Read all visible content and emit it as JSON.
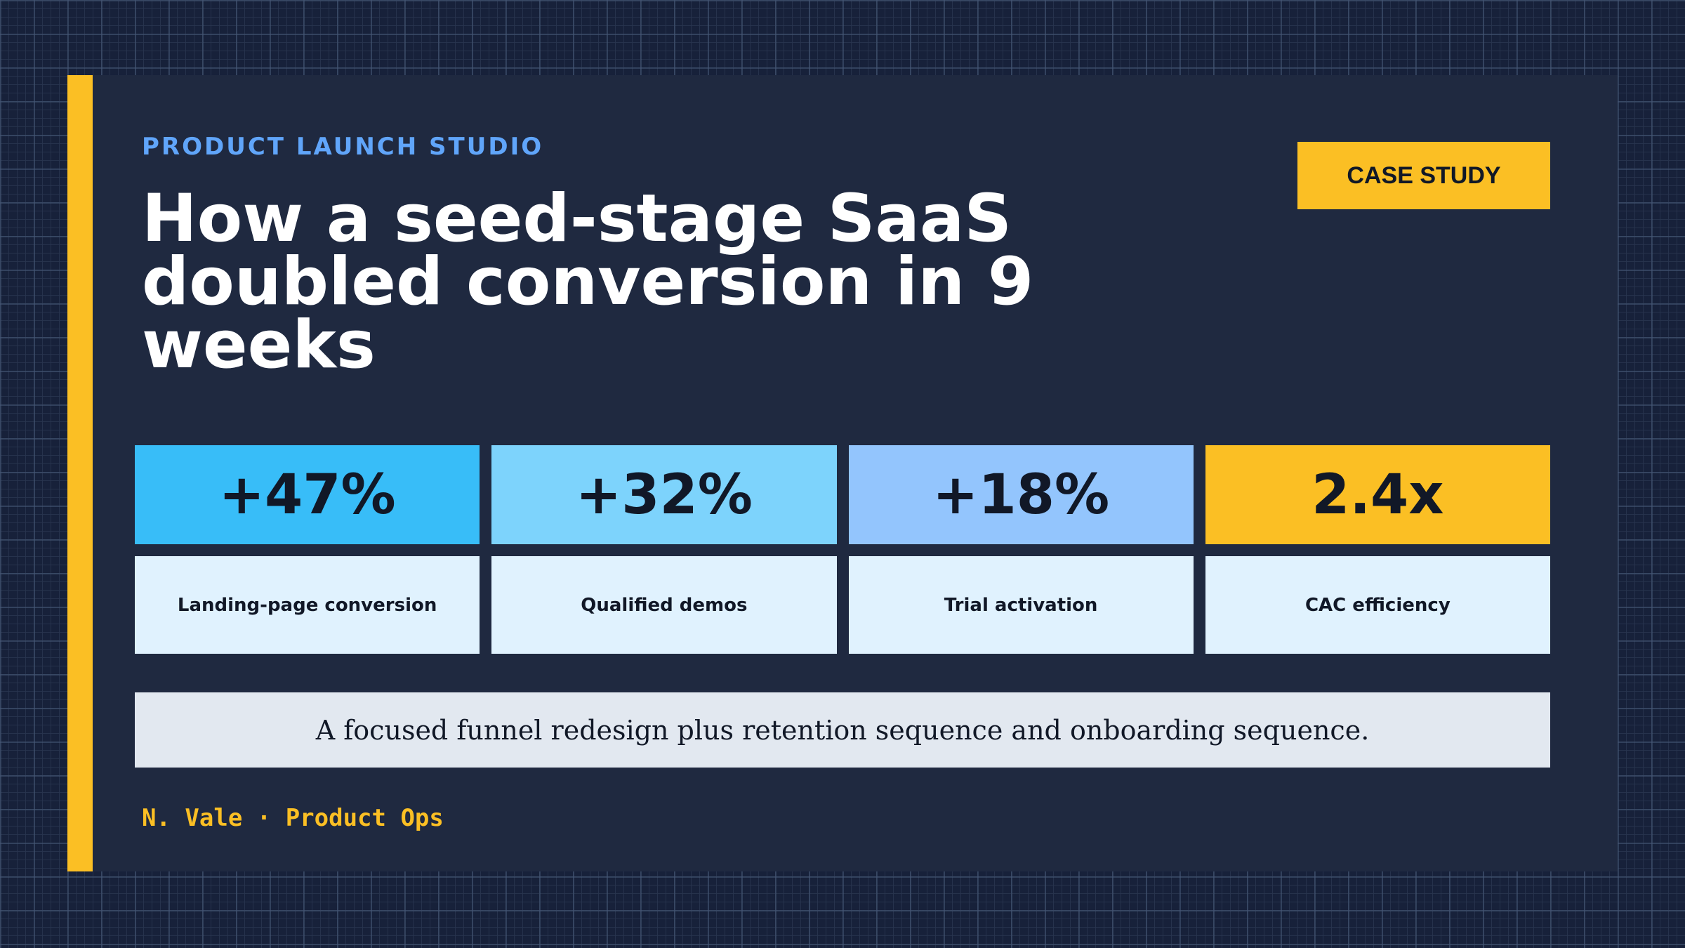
{
  "header": {
    "eyebrow": "PRODUCT LAUNCH STUDIO",
    "badge": "CASE STUDY",
    "title": "How a seed-stage SaaS doubled conversion in 9 weeks"
  },
  "stats": [
    {
      "value": "+47%",
      "label": "Landing-page conversion",
      "color": "#38bdf8"
    },
    {
      "value": "+32%",
      "label": "Qualified demos",
      "color": "#7dd3fc"
    },
    {
      "value": "+18%",
      "label": "Trial activation",
      "color": "#93c5fd"
    },
    {
      "value": "2.4x",
      "label": "CAC efficiency",
      "color": "#fbbf24"
    }
  ],
  "summary": "A focused funnel redesign plus retention sequence and onboarding sequence.",
  "footer": {
    "author": "N. Vale · Product Ops"
  },
  "colors": {
    "background": "#17213a",
    "card": "#1f2940",
    "accent": "#fbbf24",
    "eyebrow": "#60a5fa",
    "label_bg": "#e0f2fe",
    "summary_bg": "#e2e8f0"
  }
}
